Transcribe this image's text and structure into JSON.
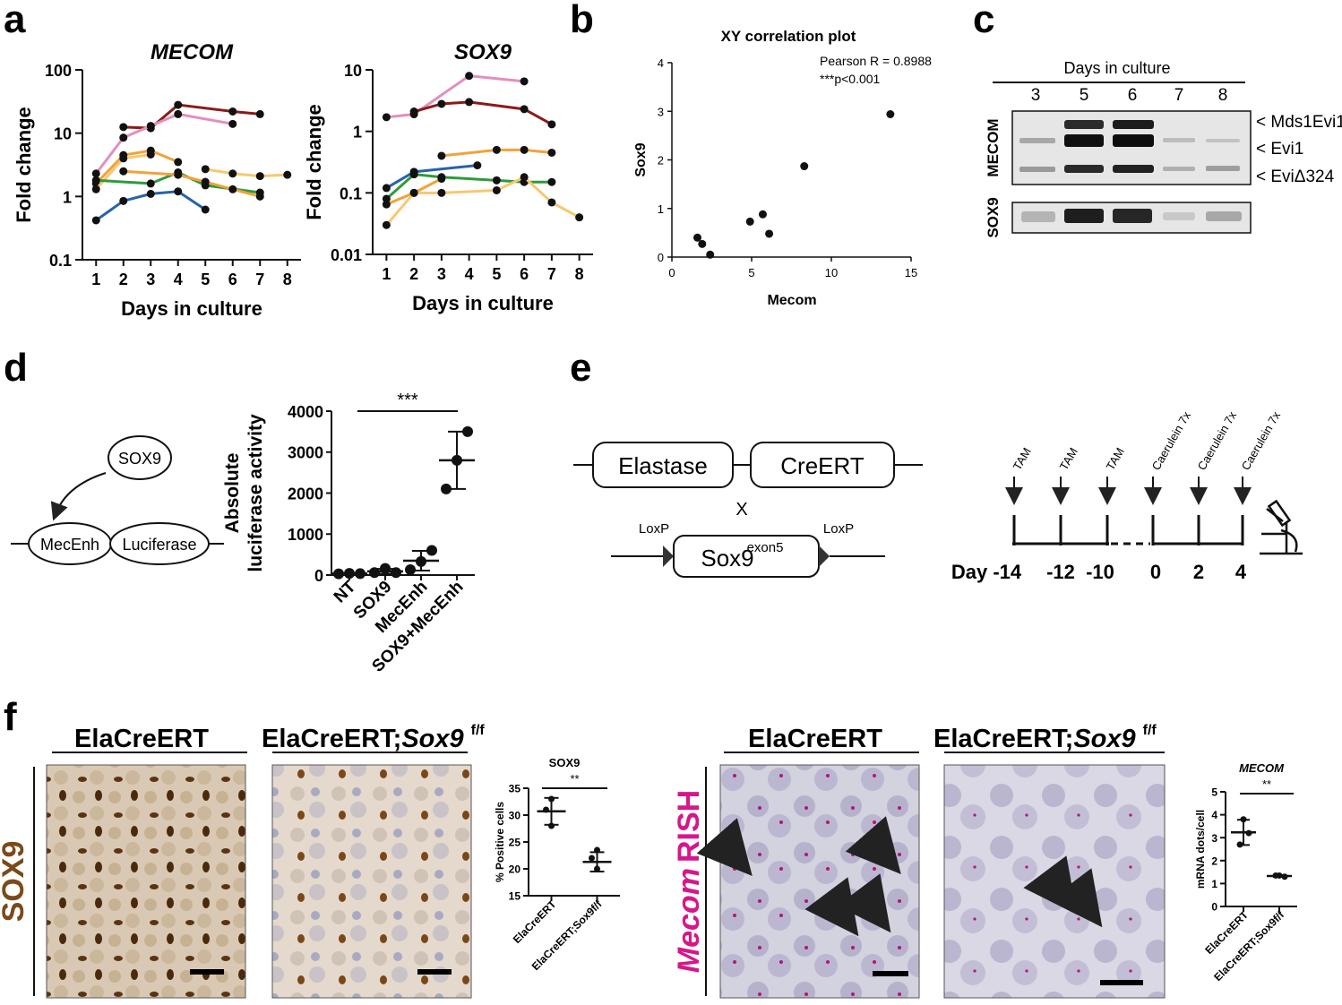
{
  "panel_labels": {
    "a": "a",
    "b": "b",
    "c": "c",
    "d": "d",
    "e": "e",
    "f": "f"
  },
  "chart_data": [
    {
      "id": "a-mecom",
      "type": "line",
      "title": "MECOM",
      "xlabel": "Days in culture",
      "ylabel": "Fold change",
      "yscale": "log",
      "ylim": [
        0.1,
        100
      ],
      "xlim": [
        0.5,
        8.5
      ],
      "x_ticks": [
        "1",
        "2",
        "3",
        "4",
        "5",
        "6",
        "7",
        "8"
      ],
      "y_ticks": [
        "0.1",
        "1",
        "10",
        "100"
      ],
      "series": [
        {
          "name": "s1",
          "color": "#8b1a1a",
          "x": [
            2,
            3,
            4,
            6,
            7
          ],
          "values": [
            12.5,
            12,
            28,
            22,
            20
          ]
        },
        {
          "name": "s2",
          "color": "#e28fbf",
          "x": [
            1,
            2,
            3,
            4,
            6
          ],
          "values": [
            2.3,
            8.5,
            13,
            20,
            14
          ]
        },
        {
          "name": "s3",
          "color": "#f2a23a",
          "x": [
            1,
            2,
            3,
            4
          ],
          "values": [
            1.6,
            4.5,
            5.3,
            3.5
          ]
        },
        {
          "name": "s4",
          "color": "#f6c872",
          "x": [
            1,
            2,
            3
          ],
          "values": [
            1.3,
            4,
            4.6
          ]
        },
        {
          "name": "s5",
          "color": "#2e9a3b",
          "x": [
            1,
            3,
            4,
            5,
            7
          ],
          "values": [
            1.8,
            1.6,
            2.4,
            1.5,
            1.15
          ]
        },
        {
          "name": "s6",
          "color": "#f2a23a",
          "x": [
            2,
            4,
            5,
            6,
            7
          ],
          "values": [
            2.5,
            2.2,
            1.7,
            1.3,
            1.0
          ]
        },
        {
          "name": "s7",
          "color": "#f6c872",
          "x": [
            5,
            6,
            7,
            8
          ],
          "values": [
            2.7,
            2.3,
            2.1,
            2.2
          ]
        },
        {
          "name": "s8",
          "color": "#2763a8",
          "x": [
            1,
            2,
            3,
            4,
            5
          ],
          "values": [
            0.42,
            0.85,
            1.1,
            1.2,
            0.62
          ]
        }
      ]
    },
    {
      "id": "a-sox9",
      "type": "line",
      "title": "SOX9",
      "xlabel": "Days in culture",
      "ylabel": "Fold change",
      "yscale": "log",
      "ylim": [
        0.01,
        10
      ],
      "xlim": [
        0.5,
        8.5
      ],
      "x_ticks": [
        "1",
        "2",
        "3",
        "4",
        "5",
        "6",
        "7",
        "8"
      ],
      "y_ticks": [
        "0.01",
        "0.1",
        "1",
        "10"
      ],
      "series": [
        {
          "name": "s1",
          "color": "#e28fbf",
          "x": [
            1,
            2,
            4,
            6
          ],
          "values": [
            1.7,
            1.9,
            8,
            6.5
          ]
        },
        {
          "name": "s2",
          "color": "#8b1a1a",
          "x": [
            2,
            3,
            4,
            6,
            7
          ],
          "values": [
            2.1,
            2.8,
            3.0,
            2.3,
            1.3
          ]
        },
        {
          "name": "s3",
          "color": "#f2a23a",
          "x": [
            3,
            5,
            6,
            7
          ],
          "values": [
            0.4,
            0.5,
            0.5,
            0.45
          ]
        },
        {
          "name": "s4",
          "color": "#2763a8",
          "x": [
            1,
            2,
            4.3
          ],
          "values": [
            0.12,
            0.22,
            0.28
          ]
        },
        {
          "name": "s5",
          "color": "#2e9a3b",
          "x": [
            1,
            2,
            3,
            5,
            6,
            7
          ],
          "values": [
            0.08,
            0.2,
            0.18,
            0.16,
            0.15,
            0.15
          ]
        },
        {
          "name": "s6",
          "color": "#f2a23a",
          "x": [
            1,
            2,
            3
          ],
          "values": [
            0.065,
            0.1,
            0.17
          ]
        },
        {
          "name": "s7",
          "color": "#f6c872",
          "x": [
            1,
            2,
            3,
            5,
            6,
            7,
            8
          ],
          "values": [
            0.03,
            0.1,
            0.1,
            0.11,
            0.18,
            0.07,
            0.04
          ]
        }
      ]
    },
    {
      "id": "b",
      "type": "scatter",
      "title": "XY correlation plot",
      "xlabel": "Mecom",
      "ylabel": "Sox9",
      "xlim": [
        0,
        15
      ],
      "ylim": [
        0,
        4
      ],
      "x_ticks": [
        "0",
        "5",
        "10",
        "15"
      ],
      "y_ticks": [
        "0",
        "1",
        "2",
        "3",
        "4"
      ],
      "annotation": [
        "Pearson R = 0.8988",
        "***p<0.001"
      ],
      "x": [
        1.6,
        1.9,
        2.4,
        4.9,
        5.7,
        6.1,
        8.3,
        13.7
      ],
      "y": [
        0.4,
        0.27,
        0.05,
        0.73,
        0.88,
        0.48,
        1.87,
        2.94
      ]
    },
    {
      "id": "d",
      "type": "scatter",
      "xlabel": "",
      "ylabel": "Absolute luciferase activity",
      "ylim": [
        0,
        4000
      ],
      "y_ticks": [
        "0",
        "1000",
        "2000",
        "3000",
        "4000"
      ],
      "categories": [
        "NT",
        "SOX9",
        "MecEnh",
        "SOX9+MecEnh"
      ],
      "points": [
        [
          30,
          40,
          35
        ],
        [
          60,
          160,
          60
        ],
        [
          130,
          330,
          600
        ],
        [
          2100,
          2800,
          3500
        ]
      ],
      "mean": [
        35,
        90,
        350,
        2800
      ],
      "sd": [
        5,
        60,
        240,
        700
      ],
      "significance": "***"
    },
    {
      "id": "f-sox9",
      "type": "scatter",
      "title": "SOX9",
      "ylabel": "% Positive cells",
      "ylim": [
        15,
        35
      ],
      "y_ticks": [
        "15",
        "20",
        "25",
        "30",
        "35"
      ],
      "categories": [
        "ElaCreERT",
        "ElaCreERT;Sox9f/f"
      ],
      "points": [
        [
          33,
          31,
          28
        ],
        [
          23.5,
          22,
          20
        ]
      ],
      "mean": [
        30.7,
        21.3
      ],
      "sd": [
        2.5,
        1.8
      ],
      "significance": "**"
    },
    {
      "id": "f-mecom",
      "type": "scatter",
      "title": "MECOM",
      "ylabel": "mRNA dots/cell",
      "ylim": [
        0,
        5
      ],
      "y_ticks": [
        "0",
        "1",
        "2",
        "3",
        "4",
        "5"
      ],
      "categories": [
        "ElaCreERT",
        "ElaCreERT;Sox9f/f"
      ],
      "points": [
        [
          3.8,
          3.2,
          2.7
        ],
        [
          1.35,
          1.3,
          1.35
        ]
      ],
      "mean": [
        3.23,
        1.33
      ],
      "sd": [
        0.55,
        0.04
      ],
      "significance": "**"
    }
  ],
  "blot": {
    "header": "Days in culture",
    "lanes": [
      "3",
      "5",
      "6",
      "7",
      "8"
    ],
    "rows": [
      "MECOM",
      "SOX9"
    ],
    "bands": [
      "< Mds1Evi1",
      "< Evi1",
      "< EviΔ324"
    ]
  },
  "construct_d": {
    "factor": "SOX9",
    "enhancer": "MecEnh",
    "reporter": "Luciferase"
  },
  "construct_e": {
    "gene1": "Elastase",
    "gene2": "CreERT",
    "cross": "X",
    "loxp_left": "LoxP",
    "loxp_right": "LoxP",
    "target": "Sox9",
    "target_sup": "exon5"
  },
  "timeline": {
    "events": [
      {
        "label": "TAM",
        "day": "Day -14"
      },
      {
        "label": "TAM",
        "day": "-12"
      },
      {
        "label": "TAM",
        "day": "-10"
      },
      {
        "label": "Caerulein 7x",
        "day": "0"
      },
      {
        "label": "Caerulein 7x",
        "day": "2"
      },
      {
        "label": "Caerulein 7x",
        "day": "4"
      }
    ]
  },
  "panel_f": {
    "group1": "ElaCreERT",
    "group2_prefix": "ElaCreERT;",
    "group2_gene": "Sox9",
    "group2_sup": "f/f",
    "stain_left": "SOX9",
    "stain_right_gene": "Mecom",
    "stain_right_method": "RISH"
  },
  "colors": {
    "sox9_stain": "#7a4a1a",
    "rish": "#d6178a"
  }
}
